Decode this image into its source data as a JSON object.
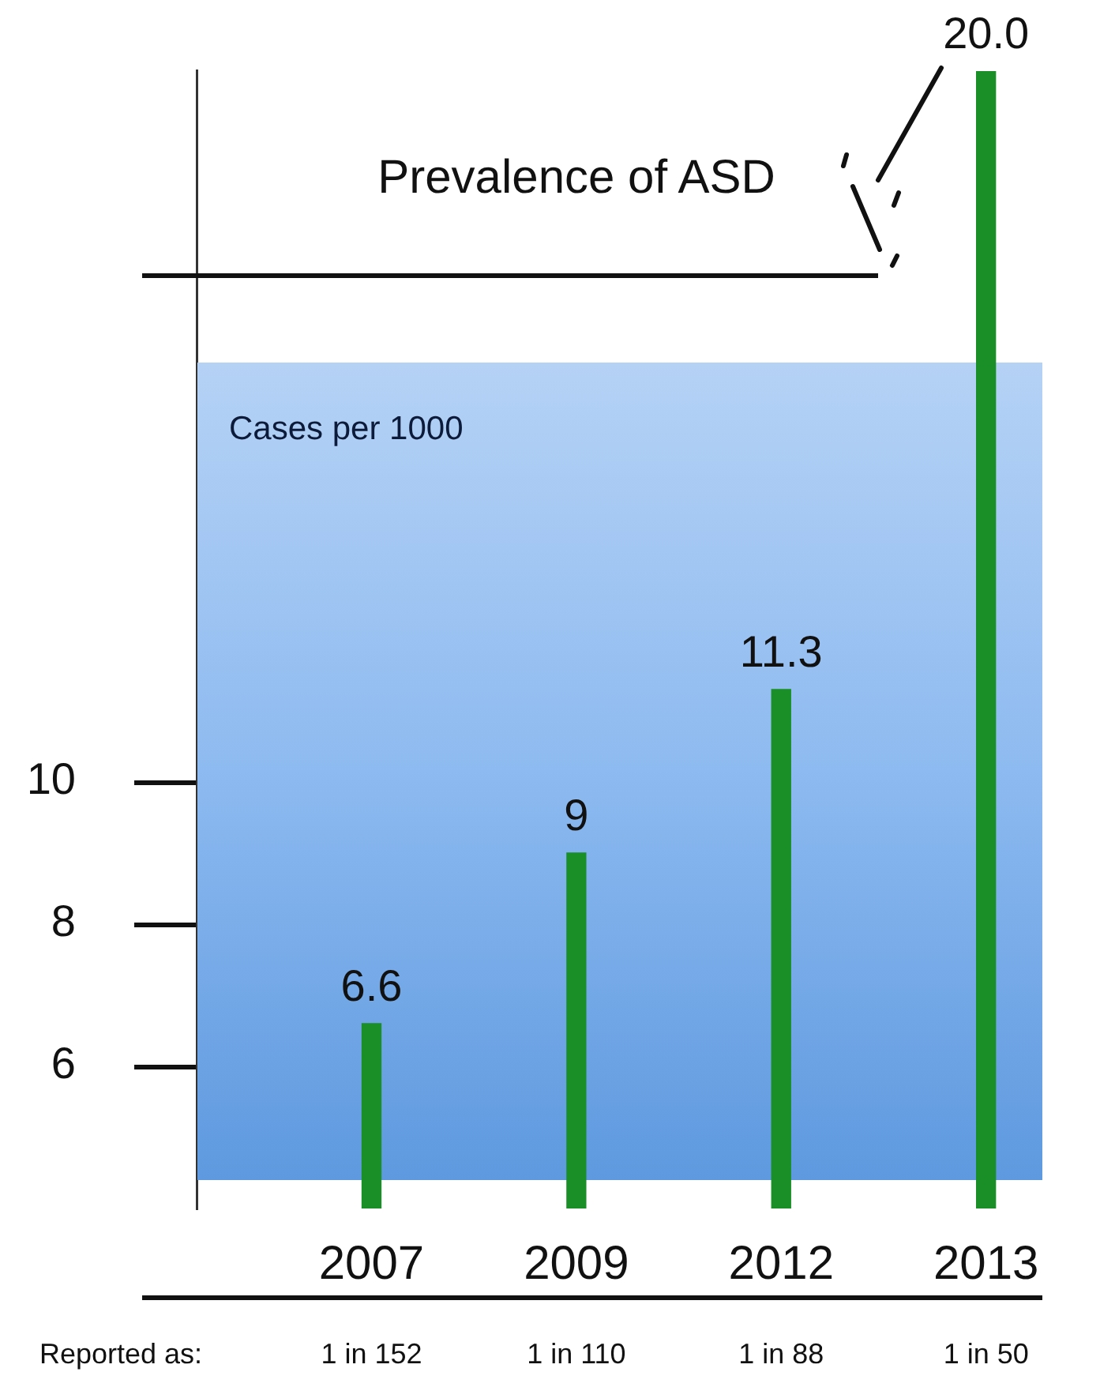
{
  "chart_data": {
    "type": "bar",
    "title": "Prevalence of ASD",
    "ylabel": "Cases per 1000",
    "categories": [
      "2007",
      "2009",
      "2012",
      "2013"
    ],
    "values": [
      6.6,
      9,
      11.3,
      20.0
    ],
    "value_labels": [
      "6.6",
      "9",
      "11.3",
      "20.0"
    ],
    "color": "#1a8f28",
    "ylim": [
      4,
      20
    ],
    "yticks": [
      6,
      8,
      10
    ],
    "bands": [
      {
        "axis": "y",
        "from": 4.4,
        "to": 15.9,
        "color": "#8dbaf0"
      }
    ],
    "annotations": [
      "Reported as:",
      "1 in 152",
      "1 in 110",
      "1 in 88",
      "1 in 50"
    ]
  }
}
